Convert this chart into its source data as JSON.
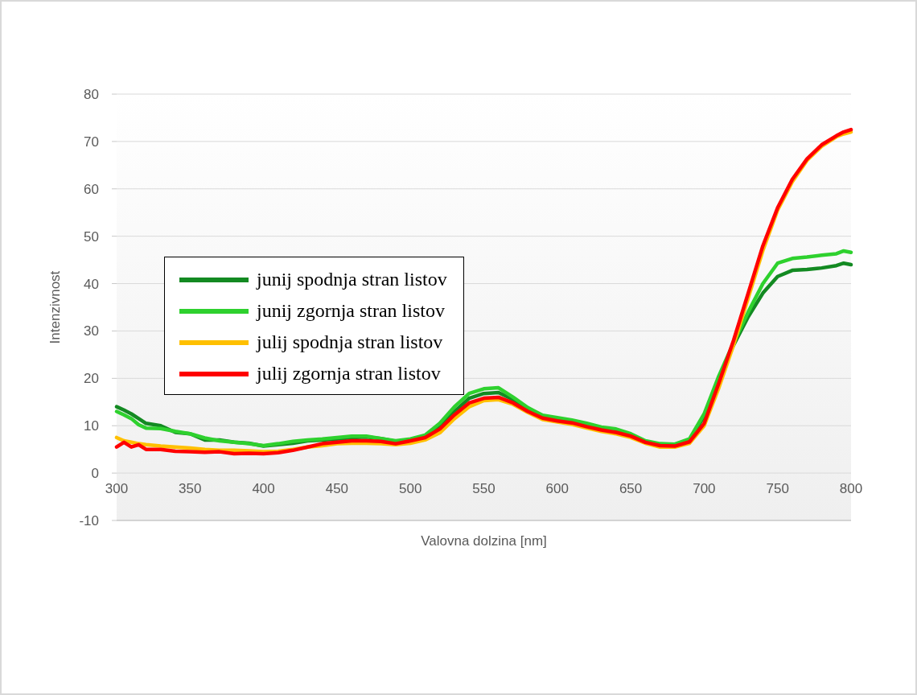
{
  "chart_data": {
    "type": "line",
    "xlabel": "Valovna dolzina [nm]",
    "ylabel": "Intenzivnost",
    "x": [
      300,
      305,
      310,
      315,
      320,
      330,
      340,
      350,
      360,
      370,
      380,
      390,
      400,
      410,
      420,
      430,
      440,
      450,
      460,
      470,
      480,
      490,
      500,
      510,
      520,
      530,
      540,
      550,
      560,
      570,
      580,
      590,
      600,
      610,
      620,
      630,
      640,
      650,
      660,
      670,
      680,
      690,
      700,
      710,
      720,
      730,
      740,
      750,
      760,
      770,
      780,
      790,
      795,
      800
    ],
    "series": [
      {
        "name": "junij spodnja stran listov",
        "color": "#138a22",
        "values": [
          14,
          13.3,
          12.5,
          11.5,
          10.5,
          10,
          8.6,
          8.3,
          7,
          7,
          6.5,
          6.3,
          5.7,
          6,
          6.3,
          6.8,
          7,
          7.2,
          7.5,
          7.6,
          7.3,
          6.7,
          7,
          7.8,
          10,
          13,
          15.8,
          16.8,
          17,
          15.5,
          13.5,
          12,
          11.5,
          11,
          10.3,
          9.5,
          9,
          8,
          6.5,
          6,
          6,
          7,
          12,
          20,
          27,
          33,
          38,
          41.5,
          42.8,
          43,
          43.3,
          43.8,
          44.3,
          44
        ]
      },
      {
        "name": "junij zgornja stran listov",
        "color": "#2ed12e",
        "values": [
          13,
          12.3,
          11.5,
          10.2,
          9.5,
          9.4,
          8.8,
          8.3,
          7.4,
          6.8,
          6.5,
          6.2,
          5.8,
          6.2,
          6.7,
          7,
          7.2,
          7.5,
          7.8,
          7.8,
          7.3,
          6.8,
          7.2,
          8,
          10.5,
          14,
          16.8,
          17.8,
          18,
          16,
          13.8,
          12.2,
          11.7,
          11.2,
          10.5,
          9.7,
          9.3,
          8.3,
          6.8,
          6.2,
          6.1,
          7.2,
          12.5,
          20.5,
          27.5,
          34,
          40,
          44.3,
          45.3,
          45.6,
          46,
          46.3,
          46.9,
          46.6
        ]
      },
      {
        "name": "julij spodnja stran listov",
        "color": "#ffc000",
        "values": [
          7.5,
          6.8,
          6.5,
          6.2,
          6,
          5.7,
          5.5,
          5.3,
          5,
          4.8,
          4.8,
          4.7,
          4.5,
          4.6,
          5,
          5.5,
          5.8,
          6.2,
          6.3,
          6.3,
          6.2,
          6,
          6.3,
          7,
          8.5,
          11.5,
          14,
          15.3,
          15.5,
          14.5,
          12.8,
          11.3,
          10.8,
          10.3,
          9.5,
          8.8,
          8.3,
          7.5,
          6.3,
          5.5,
          5.5,
          6.3,
          10,
          18,
          27,
          37,
          47,
          55.5,
          61.5,
          66,
          69,
          71,
          71.6,
          72
        ]
      },
      {
        "name": "julij zgornja stran listov",
        "color": "#ff0000",
        "values": [
          5.5,
          6.5,
          5.5,
          6,
          5,
          5,
          4.6,
          4.5,
          4.4,
          4.5,
          4.1,
          4.2,
          4.1,
          4.3,
          4.8,
          5.5,
          6.2,
          6.5,
          6.8,
          6.8,
          6.7,
          6.2,
          6.8,
          7.5,
          9.3,
          12.3,
          14.8,
          15.8,
          16,
          14.8,
          13,
          11.6,
          11,
          10.6,
          9.8,
          9.1,
          8.6,
          7.8,
          6.5,
          5.8,
          5.7,
          6.6,
          10.5,
          19,
          28,
          38,
          48,
          56,
          62,
          66.3,
          69.3,
          71.2,
          72,
          72.5
        ]
      }
    ],
    "xlim": [
      300,
      800
    ],
    "xticks": [
      300,
      350,
      400,
      450,
      500,
      550,
      600,
      650,
      700,
      750,
      800
    ],
    "ylim": [
      -10,
      80
    ],
    "yticks": [
      -10,
      0,
      10,
      20,
      30,
      40,
      50,
      60,
      70,
      80
    ],
    "grid": "y",
    "legend": "left",
    "marker": "none",
    "line_style": "solid"
  }
}
